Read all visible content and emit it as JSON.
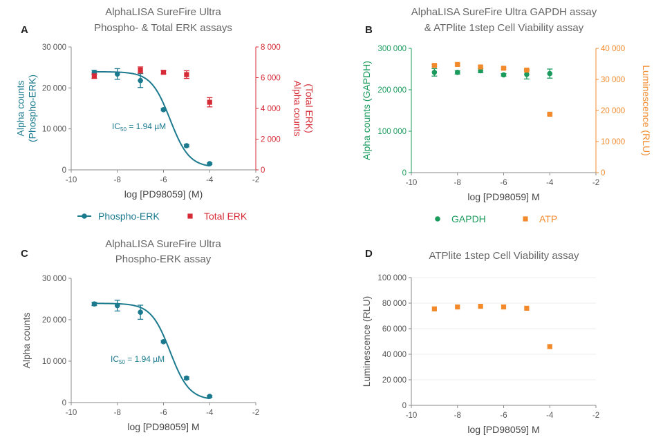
{
  "colors": {
    "teal": "#1b7a8e",
    "red": "#d62a36",
    "green": "#1a9b5c",
    "orange": "#f2892b",
    "axis": "#8a8a8a",
    "text": "#555555",
    "grid": "#ececec"
  },
  "chart_data": [
    {
      "id": "A",
      "panel_label": "A",
      "type": "scatter",
      "title": "AlphaLISA SureFire Ultra",
      "subtitle": "Phospho- & Total ERK assays",
      "xlabel": "log [PD98059] (M)",
      "xlim": [
        -10,
        -2
      ],
      "xticks": [
        "-10",
        "-8",
        "-6",
        "-4",
        "-2"
      ],
      "ylabel": [
        "Alpha counts",
        "(Phospho-ERK)"
      ],
      "ylim": [
        0,
        30000
      ],
      "yticks": [
        "0",
        "10 000",
        "20 000",
        "30 000"
      ],
      "y2label": [
        "Alpha counts",
        "(Total ERK)"
      ],
      "y2lim": [
        0,
        8000
      ],
      "y2ticks": [
        "0",
        "2 000",
        "4 000",
        "6 000",
        "8 000"
      ],
      "grid": false,
      "legend_position": "bottom",
      "annotation": {
        "main": "IC",
        "sub": "50",
        "rest": " = 1.94 µM"
      },
      "series": [
        {
          "name": "Phospho-ERK",
          "axis": "left",
          "marker": "circle",
          "line": true,
          "x": [
            -9,
            -8,
            -7,
            -6,
            -5,
            -4
          ],
          "y": [
            23800,
            23400,
            21800,
            14700,
            5900,
            1500
          ],
          "err": [
            500,
            1300,
            1700,
            300,
            300,
            200
          ]
        },
        {
          "name": "Total ERK",
          "axis": "right",
          "marker": "square",
          "line": false,
          "x": [
            -9,
            -7,
            -6,
            -5,
            -4
          ],
          "y": [
            6100,
            6500,
            6350,
            6200,
            4400
          ],
          "err": [
            150,
            200,
            100,
            250,
            300
          ]
        }
      ]
    },
    {
      "id": "B",
      "panel_label": "B",
      "type": "scatter",
      "title": "AlphaLISA SureFire Ultra GAPDH assay",
      "subtitle": "& ATPlite 1step Cell Viability assay",
      "xlabel": "log [PD98059] M",
      "xlim": [
        -10,
        -2
      ],
      "xticks": [
        "-10",
        "-8",
        "-6",
        "-4",
        "-2"
      ],
      "ylabel": [
        "Alpha counts (GAPDH)"
      ],
      "ylim": [
        0,
        300000
      ],
      "yticks": [
        "0",
        "100 000",
        "200 000",
        "300 000"
      ],
      "y2label": [
        "Luminescence (RLU)"
      ],
      "y2lim": [
        0,
        40000
      ],
      "y2ticks": [
        "0",
        "10 000",
        "20 000",
        "30 000",
        "40 000"
      ],
      "grid": false,
      "legend_position": "bottom",
      "series": [
        {
          "name": "GAPDH",
          "axis": "left",
          "marker": "circle",
          "line": false,
          "x": [
            -9,
            -8,
            -7,
            -6,
            -5,
            -4
          ],
          "y": [
            242000,
            242000,
            246000,
            236000,
            237000,
            239000
          ],
          "err": [
            9000,
            4000,
            5000,
            3000,
            11000,
            11000
          ]
        },
        {
          "name": "ATP",
          "axis": "right",
          "marker": "square",
          "line": false,
          "x": [
            -9,
            -8,
            -7,
            -6,
            -5,
            -4
          ],
          "y": [
            34500,
            34800,
            34000,
            33600,
            33000,
            18800
          ],
          "err": [
            300,
            300,
            300,
            300,
            300,
            300
          ]
        }
      ]
    },
    {
      "id": "C",
      "panel_label": "C",
      "type": "line",
      "title": "AlphaLISA SureFire Ultra",
      "subtitle": "Phospho-ERK assay",
      "xlabel": "log [PD98059] M",
      "xlim": [
        -10,
        -2
      ],
      "xticks": [
        "-10",
        "-8",
        "-6",
        "-4",
        "-2"
      ],
      "ylabel": [
        "Alpha counts"
      ],
      "ylim": [
        0,
        30000
      ],
      "yticks": [
        "0",
        "10 000",
        "20 000",
        "30 000"
      ],
      "grid": false,
      "annotation": {
        "main": "IC",
        "sub": "50",
        "rest": " = 1.94 µM"
      },
      "series": [
        {
          "axis": "left",
          "marker": "circle",
          "line": true,
          "x": [
            -9,
            -8,
            -7,
            -6,
            -5,
            -4
          ],
          "y": [
            23800,
            23400,
            21800,
            14700,
            5900,
            1500
          ],
          "err": [
            400,
            1300,
            1700,
            300,
            300,
            200
          ]
        }
      ]
    },
    {
      "id": "D",
      "panel_label": "D",
      "type": "scatter",
      "title": "ATPlite 1step Cell Viability assay",
      "subtitle": "",
      "xlabel": "log [PD98059] M",
      "xlim": [
        -10,
        -2
      ],
      "xticks": [
        "-10",
        "-8",
        "-6",
        "-4",
        "-2"
      ],
      "ylabel": [
        "Luminescence (RLU)"
      ],
      "ylim": [
        0,
        100000
      ],
      "yticks": [
        "0",
        "20 000",
        "40 000",
        "60 000",
        "80 000",
        "100 000"
      ],
      "grid": true,
      "series": [
        {
          "axis": "left",
          "marker": "square",
          "line": false,
          "x": [
            -9,
            -8,
            -7,
            -6,
            -5,
            -4
          ],
          "y": [
            75500,
            77000,
            77500,
            77000,
            76000,
            46000
          ],
          "err": [
            0,
            0,
            0,
            0,
            0,
            0
          ]
        }
      ]
    }
  ]
}
